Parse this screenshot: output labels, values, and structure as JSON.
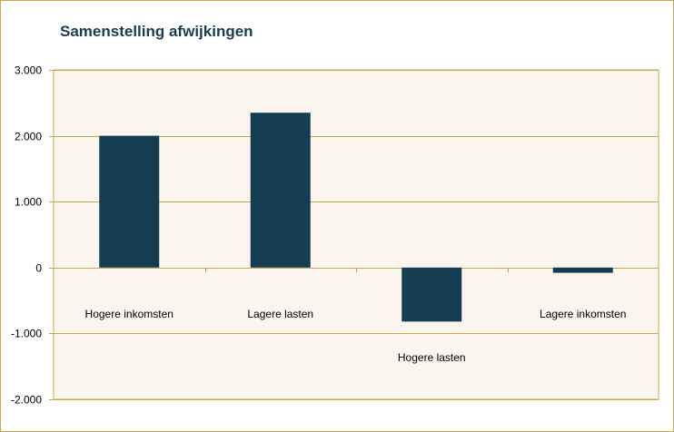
{
  "chart_data": {
    "type": "bar",
    "title": "Samenstelling afwijkingen",
    "categories": [
      "Hogere inkomsten",
      "Lagere lasten",
      "Hogere lasten",
      "Lagere inkomsten"
    ],
    "values": [
      2000,
      2350,
      -820,
      -80
    ],
    "ylim": [
      -2000,
      3000
    ],
    "yticks": [
      3000,
      2000,
      1000,
      0,
      -1000,
      -2000
    ],
    "ytick_labels": [
      "3.000",
      "2.000",
      "1.000",
      "0",
      "-1.000",
      "-2.000"
    ],
    "grid": true,
    "legend": "none",
    "colors": {
      "bar": "#143d52",
      "plot_bg": "#faf6ef",
      "grid": "#c8a84a",
      "title": "#1a3d4e"
    }
  }
}
